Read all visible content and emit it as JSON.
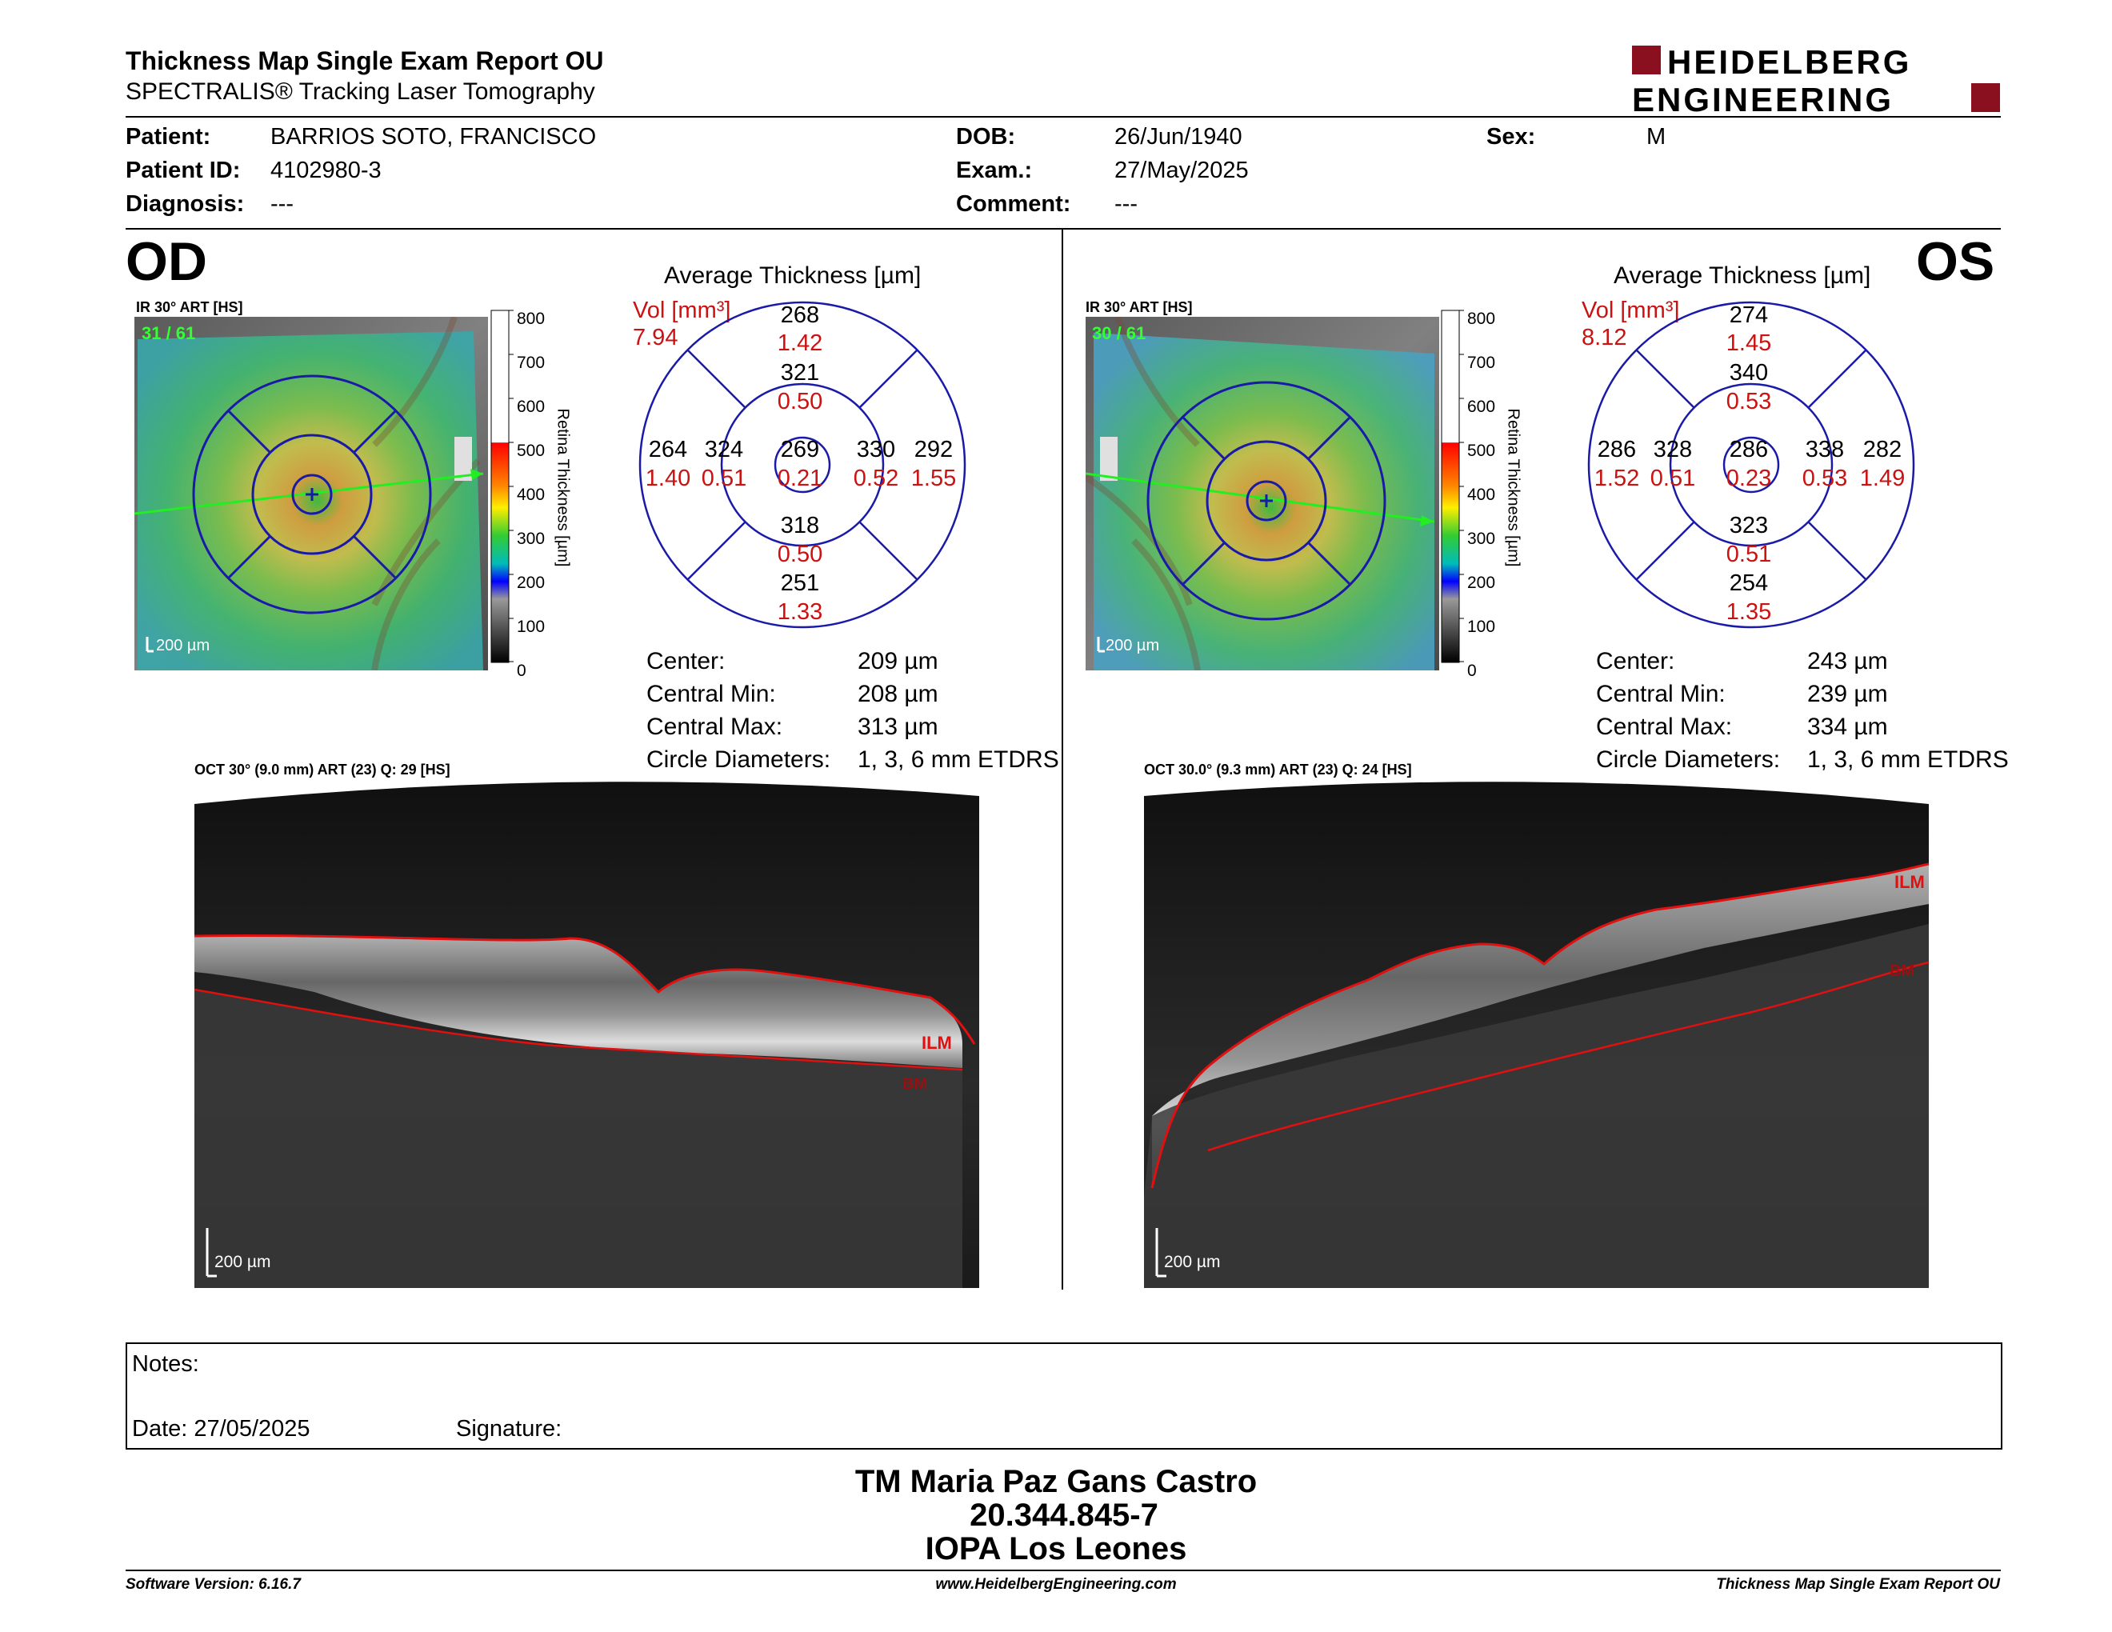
{
  "header": {
    "title": "Thickness Map Single Exam Report OU",
    "subtitle": "SPECTRALIS® Tracking Laser Tomography",
    "logo_line1": "HEIDELBERG",
    "logo_line2": "ENGINEERING"
  },
  "patient": {
    "patient_label": "Patient:",
    "patient_value": "BARRIOS SOTO, FRANCISCO",
    "id_label": "Patient ID:",
    "id_value": "4102980-3",
    "diagnosis_label": "Diagnosis:",
    "diagnosis_value": "---",
    "dob_label": "DOB:",
    "dob_value": "26/Jun/1940",
    "exam_label": "Exam.:",
    "exam_value": "27/May/2025",
    "comment_label": "Comment:",
    "comment_value": "---",
    "sex_label": "Sex:",
    "sex_value": "M"
  },
  "od": {
    "eye": "OD",
    "ir_label": "IR 30° ART [HS]",
    "frames": "31 / 61",
    "scale": "200 µm",
    "colorbar_ticks": [
      "800",
      "700",
      "600",
      "500",
      "400",
      "300",
      "200",
      "100",
      "0"
    ],
    "colorbar_label": "Retina  Thickness [µm]",
    "avg_title": "Average Thickness [µm]",
    "vol_label": "Vol [mm³]",
    "vol_total": "7.94",
    "sectors": {
      "outer_sup": {
        "t": "268",
        "v": "1.42"
      },
      "inner_sup": {
        "t": "321",
        "v": "0.50"
      },
      "outer_left": {
        "t": "264",
        "v": "1.40"
      },
      "inner_left": {
        "t": "324",
        "v": "0.51"
      },
      "center": {
        "t": "269",
        "v": "0.21"
      },
      "inner_right": {
        "t": "330",
        "v": "0.52"
      },
      "outer_right": {
        "t": "292",
        "v": "1.55"
      },
      "inner_inf": {
        "t": "318",
        "v": "0.50"
      },
      "outer_inf": {
        "t": "251",
        "v": "1.33"
      }
    },
    "stats": [
      {
        "label": "Center:",
        "value": "209 µm"
      },
      {
        "label": "Central Min:",
        "value": "208 µm"
      },
      {
        "label": "Central Max:",
        "value": "313 µm"
      },
      {
        "label": "Circle Diameters:",
        "value": "1, 3, 6 mm ETDRS"
      }
    ],
    "oct_label": "OCT 30° (9.0 mm) ART (23) Q: 29 [HS]",
    "oct_scale": "200 µm",
    "ilm": "ILM",
    "bm": "BM"
  },
  "os": {
    "eye": "OS",
    "ir_label": "IR 30° ART [HS]",
    "frames": "30 / 61",
    "scale": "200 µm",
    "colorbar_ticks": [
      "800",
      "700",
      "600",
      "500",
      "400",
      "300",
      "200",
      "100",
      "0"
    ],
    "colorbar_label": "Retina  Thickness [µm]",
    "avg_title": "Average Thickness [µm]",
    "vol_label": "Vol [mm³]",
    "vol_total": "8.12",
    "sectors": {
      "outer_sup": {
        "t": "274",
        "v": "1.45"
      },
      "inner_sup": {
        "t": "340",
        "v": "0.53"
      },
      "outer_left": {
        "t": "286",
        "v": "1.52"
      },
      "inner_left": {
        "t": "328",
        "v": "0.51"
      },
      "center": {
        "t": "286",
        "v": "0.23"
      },
      "inner_right": {
        "t": "338",
        "v": "0.53"
      },
      "outer_right": {
        "t": "282",
        "v": "1.49"
      },
      "inner_inf": {
        "t": "323",
        "v": "0.51"
      },
      "outer_inf": {
        "t": "254",
        "v": "1.35"
      }
    },
    "stats": [
      {
        "label": "Center:",
        "value": "243 µm"
      },
      {
        "label": "Central Min:",
        "value": "239 µm"
      },
      {
        "label": "Central Max:",
        "value": "334 µm"
      },
      {
        "label": "Circle Diameters:",
        "value": "1, 3, 6 mm ETDRS"
      }
    ],
    "oct_label": "OCT 30.0° (9.3 mm) ART (23) Q: 24 [HS]",
    "oct_scale": "200 µm",
    "ilm": "ILM",
    "bm": "BM"
  },
  "notes": {
    "notes_label": "Notes:",
    "date_label": "Date: 27/05/2025",
    "signature_label": "Signature:"
  },
  "signer": {
    "name": "TM Maria Paz Gans Castro",
    "rut": "20.344.845-7",
    "institution": "IOPA Los Leones"
  },
  "footer": {
    "software": "Software Version: 6.16.7",
    "website": "www.HeidelbergEngineering.com",
    "report": "Thickness Map Single Exam Report OU"
  },
  "colors": {
    "accent_red": "#cc1111",
    "logo_red": "#8a1020",
    "grid_blue": "#1a1aa8",
    "ilm_red": "#e01010"
  }
}
